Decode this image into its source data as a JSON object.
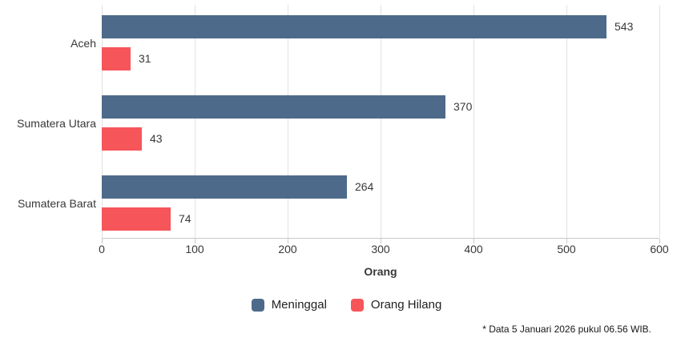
{
  "chart_data": {
    "type": "bar",
    "orientation": "horizontal",
    "categories": [
      "Aceh",
      "Sumatera Utara",
      "Sumatera Barat"
    ],
    "series": [
      {
        "name": "Meninggal",
        "color": "#4e6a8b",
        "values": [
          543,
          370,
          264
        ]
      },
      {
        "name": "Orang Hilang",
        "color": "#f6555a",
        "values": [
          31,
          43,
          74
        ]
      }
    ],
    "xlabel": "Orang",
    "xlim": [
      0,
      600
    ],
    "xticks": [
      0,
      100,
      200,
      300,
      400,
      500,
      600
    ],
    "grid": true,
    "legend_position": "bottom",
    "value_labels": true
  },
  "footnote": "* Data 5 Januari 2026 pukul 06.56 WIB."
}
